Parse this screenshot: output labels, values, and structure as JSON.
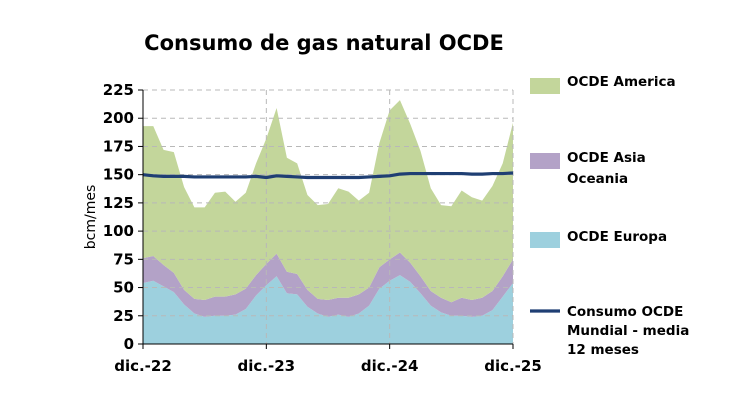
{
  "chart_data": {
    "type": "area",
    "title": "Consumo de gas natural OCDE",
    "xlabel": "",
    "ylabel": "bcm/mes",
    "ylim": [
      0,
      225
    ],
    "y_ticks": [
      0,
      25,
      50,
      75,
      100,
      125,
      150,
      175,
      200,
      225
    ],
    "x_tick_labels": [
      "dic.-22",
      "dic.-23",
      "dic.-24",
      "dic.-25"
    ],
    "x_tick_indices": [
      0,
      12,
      24,
      36
    ],
    "grid": "dashed",
    "legend_position": "right",
    "series": [
      {
        "name": "OCDE Europa",
        "kind": "stacked-area",
        "color": "#9dd0de",
        "values": [
          54,
          56,
          51,
          46,
          35,
          27,
          24,
          25,
          25,
          26,
          31,
          43,
          52,
          60,
          45,
          44,
          33,
          27,
          24,
          26,
          24,
          27,
          34,
          49,
          56,
          61,
          55,
          45,
          34,
          28,
          25,
          25,
          24,
          25,
          30,
          42,
          54
        ]
      },
      {
        "name": "OCDE Asia Oceania",
        "kind": "stacked-area",
        "color": "#b3a2c7",
        "values": [
          22,
          22,
          19,
          17,
          13,
          13,
          15,
          17,
          17,
          18,
          18,
          18,
          19,
          20,
          19,
          18,
          15,
          13,
          15,
          15,
          17,
          17,
          16,
          19,
          19,
          20,
          17,
          15,
          13,
          13,
          12,
          16,
          15,
          16,
          17,
          18,
          21
        ]
      },
      {
        "name": "OCDE America",
        "kind": "stacked-area",
        "color": "#c3d69b",
        "values": [
          117,
          115,
          102,
          107,
          91,
          81,
          82,
          92,
          93,
          82,
          85,
          99,
          111,
          129,
          101,
          98,
          84,
          83,
          85,
          97,
          94,
          83,
          84,
          110,
          132,
          135,
          123,
          111,
          91,
          82,
          85,
          95,
          91,
          86,
          93,
          100,
          121
        ]
      },
      {
        "name": "Consumo OCDE Mundial - media 12 meses",
        "kind": "line",
        "color": "#1f3f73",
        "values": [
          150,
          149,
          148.5,
          148.5,
          148.5,
          148,
          148,
          148,
          148,
          148,
          148,
          148.5,
          147.5,
          149,
          148.5,
          148,
          147.5,
          147.5,
          147.5,
          147.5,
          147.5,
          147.5,
          148,
          148.5,
          149,
          150.5,
          151,
          151,
          151,
          151,
          151,
          151,
          150.5,
          150.5,
          151,
          151,
          151.5
        ]
      }
    ]
  }
}
